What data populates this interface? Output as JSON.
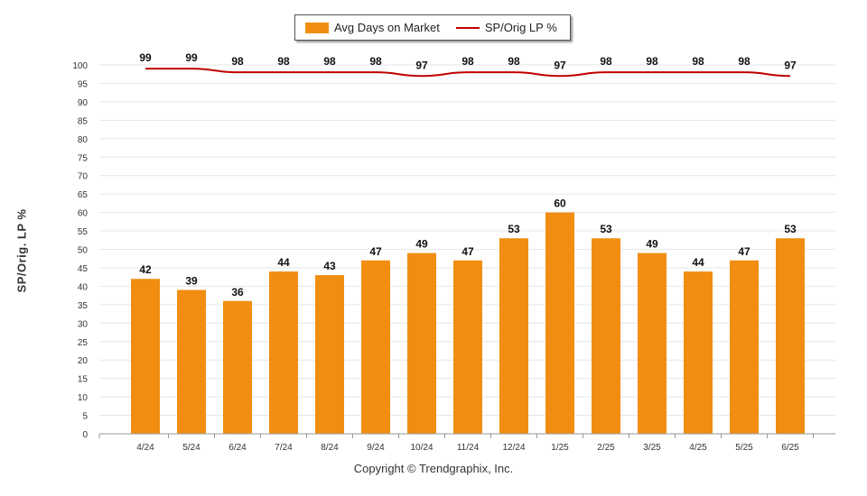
{
  "colors": {
    "bar": "#F18E12",
    "line": "#C00000",
    "grid": "#e6e6e6",
    "axis": "#555555",
    "text": "#333333"
  },
  "legend": {
    "bar_label": "Avg Days on Market",
    "line_label": "SP/Orig LP %"
  },
  "copyright": "Copyright © Trendgraphix, Inc.",
  "chart_data": {
    "type": "bar",
    "categories": [
      "4/24",
      "5/24",
      "6/24",
      "7/24",
      "8/24",
      "9/24",
      "10/24",
      "11/24",
      "12/24",
      "1/25",
      "2/25",
      "3/25",
      "4/25",
      "5/25",
      "6/25"
    ],
    "series": [
      {
        "name": "Avg Days on Market",
        "type": "bar",
        "values": [
          42,
          39,
          36,
          44,
          43,
          47,
          49,
          47,
          53,
          60,
          53,
          49,
          44,
          47,
          53
        ]
      },
      {
        "name": "SP/Orig LP %",
        "type": "line",
        "values": [
          99,
          99,
          98,
          98,
          98,
          98,
          97,
          98,
          98,
          97,
          98,
          98,
          98,
          98,
          97
        ]
      }
    ],
    "ylabel": "SP/Orig. LP %",
    "ylim": [
      0,
      100
    ],
    "yticks": [
      0,
      5,
      10,
      15,
      20,
      25,
      30,
      35,
      40,
      45,
      50,
      55,
      60,
      65,
      70,
      75,
      80,
      85,
      90,
      95,
      100
    ],
    "grid": true,
    "legend_position": "top-center"
  }
}
